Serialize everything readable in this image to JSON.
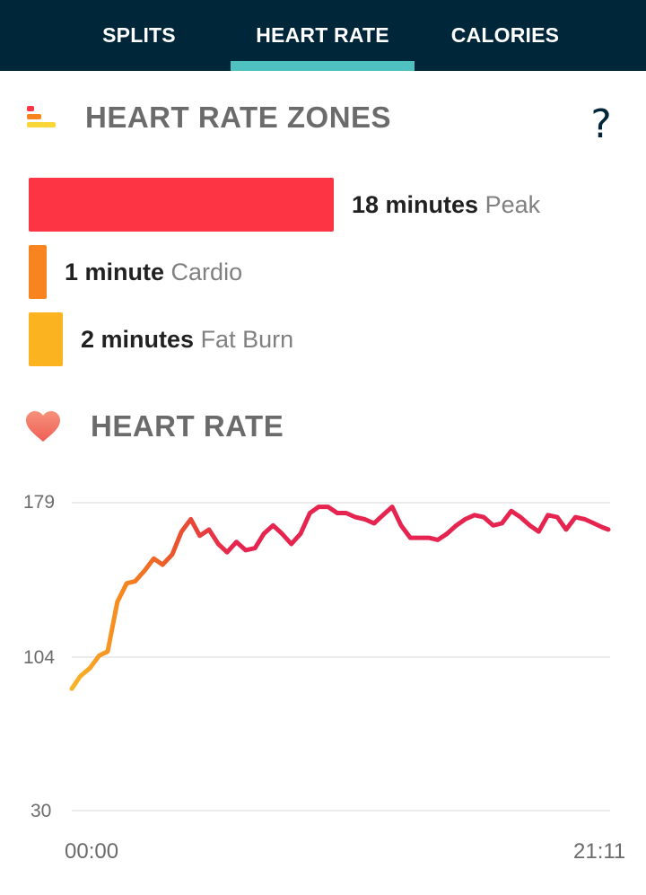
{
  "tabs": [
    {
      "label": "SPLITS",
      "active": false
    },
    {
      "label": "HEART RATE",
      "active": true
    },
    {
      "label": "CALORIES",
      "active": false
    }
  ],
  "zones_section": {
    "title": "HEART RATE ZONES",
    "icon": "zones-bars-icon",
    "help_icon": "help-icon",
    "help_label": "?",
    "zones": [
      {
        "duration": "18 minutes",
        "name": "Peak",
        "minutes": 18,
        "color": "#fc3444"
      },
      {
        "duration": "1 minute",
        "name": "Cardio",
        "minutes": 1,
        "color": "#f7841e"
      },
      {
        "duration": "2 minutes",
        "name": "Fat Burn",
        "minutes": 2,
        "color": "#fbb420"
      }
    ]
  },
  "heart_rate_section": {
    "title": "HEART RATE",
    "icon": "heart-icon"
  },
  "chart_data": {
    "type": "line",
    "title": "",
    "xlabel": "",
    "ylabel": "",
    "y_ticks": [
      30,
      104,
      179
    ],
    "ylim": [
      30,
      179
    ],
    "x_tick_labels": [
      "00:00",
      "21:11"
    ],
    "x_range_seconds": [
      0,
      1271
    ],
    "grid": true,
    "series": [
      {
        "values_x_seconds": [
          0,
          20,
          43,
          65,
          85,
          108,
          130,
          150,
          172,
          194,
          215,
          238,
          260,
          282,
          303,
          325,
          347,
          368,
          390,
          412,
          434,
          455,
          477,
          498,
          520,
          542,
          564,
          585,
          607,
          629,
          650,
          672,
          694,
          716,
          737,
          759,
          780,
          802,
          824,
          846,
          867,
          889,
          911,
          932,
          954,
          976,
          998,
          1019,
          1041,
          1063,
          1085,
          1106,
          1128,
          1150,
          1171,
          1193,
          1215,
          1237,
          1258,
          1271
        ],
        "values_bpm": [
          89,
          95,
          99,
          105,
          107,
          131,
          140,
          141,
          146,
          152,
          149,
          154,
          165,
          171,
          163,
          166,
          159,
          155,
          160,
          156,
          157,
          164,
          168,
          164,
          159,
          164,
          174,
          177,
          177,
          174,
          174,
          172,
          171,
          169,
          173,
          177,
          168,
          162,
          162,
          162,
          161,
          164,
          168,
          171,
          173,
          172,
          168,
          169,
          175,
          172,
          168,
          165,
          173,
          172,
          166,
          172,
          171,
          169,
          167,
          166
        ]
      }
    ],
    "line_colors": [
      "#f7b52a",
      "#f7841e",
      "#ea5a2b",
      "#e5254f"
    ]
  }
}
